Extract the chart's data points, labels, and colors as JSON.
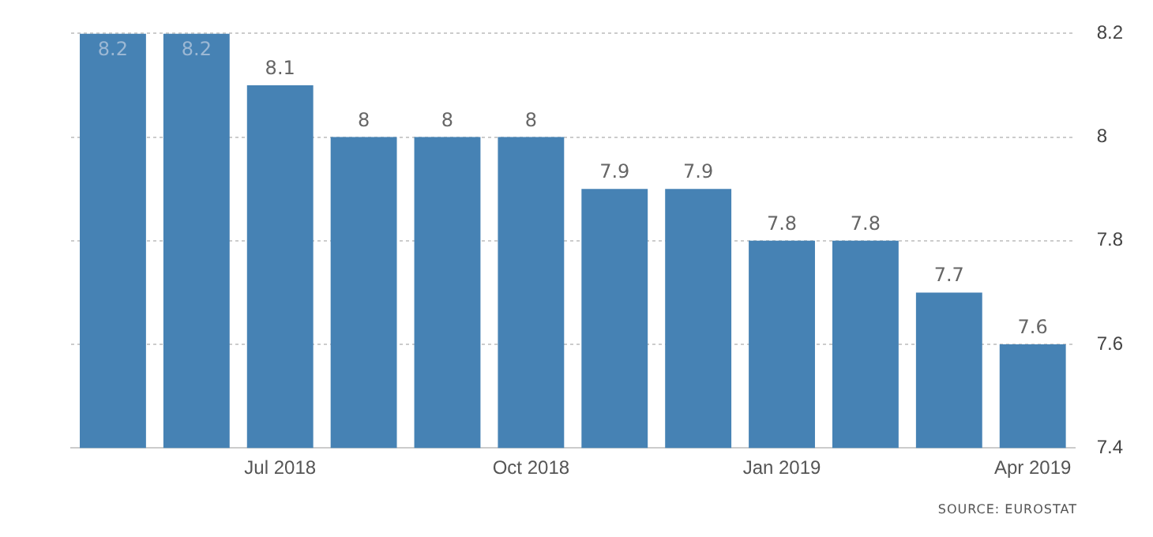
{
  "chart_data": {
    "type": "bar",
    "categories": [
      null,
      null,
      "Jul 2018",
      null,
      null,
      "Oct 2018",
      null,
      null,
      "Jan 2019",
      null,
      null,
      "Apr 2019"
    ],
    "values": [
      8.2,
      8.2,
      8.1,
      8,
      8,
      8,
      7.9,
      7.9,
      7.8,
      7.8,
      7.7,
      7.6
    ],
    "color": "#4682b4",
    "ylim": [
      7.4,
      8.2
    ],
    "yticks": [
      7.4,
      7.6,
      7.8,
      8,
      8.2
    ],
    "grid": "y",
    "data_labels": true,
    "legend": false,
    "annotations": [
      "SOURCE: EUROSTAT"
    ]
  }
}
